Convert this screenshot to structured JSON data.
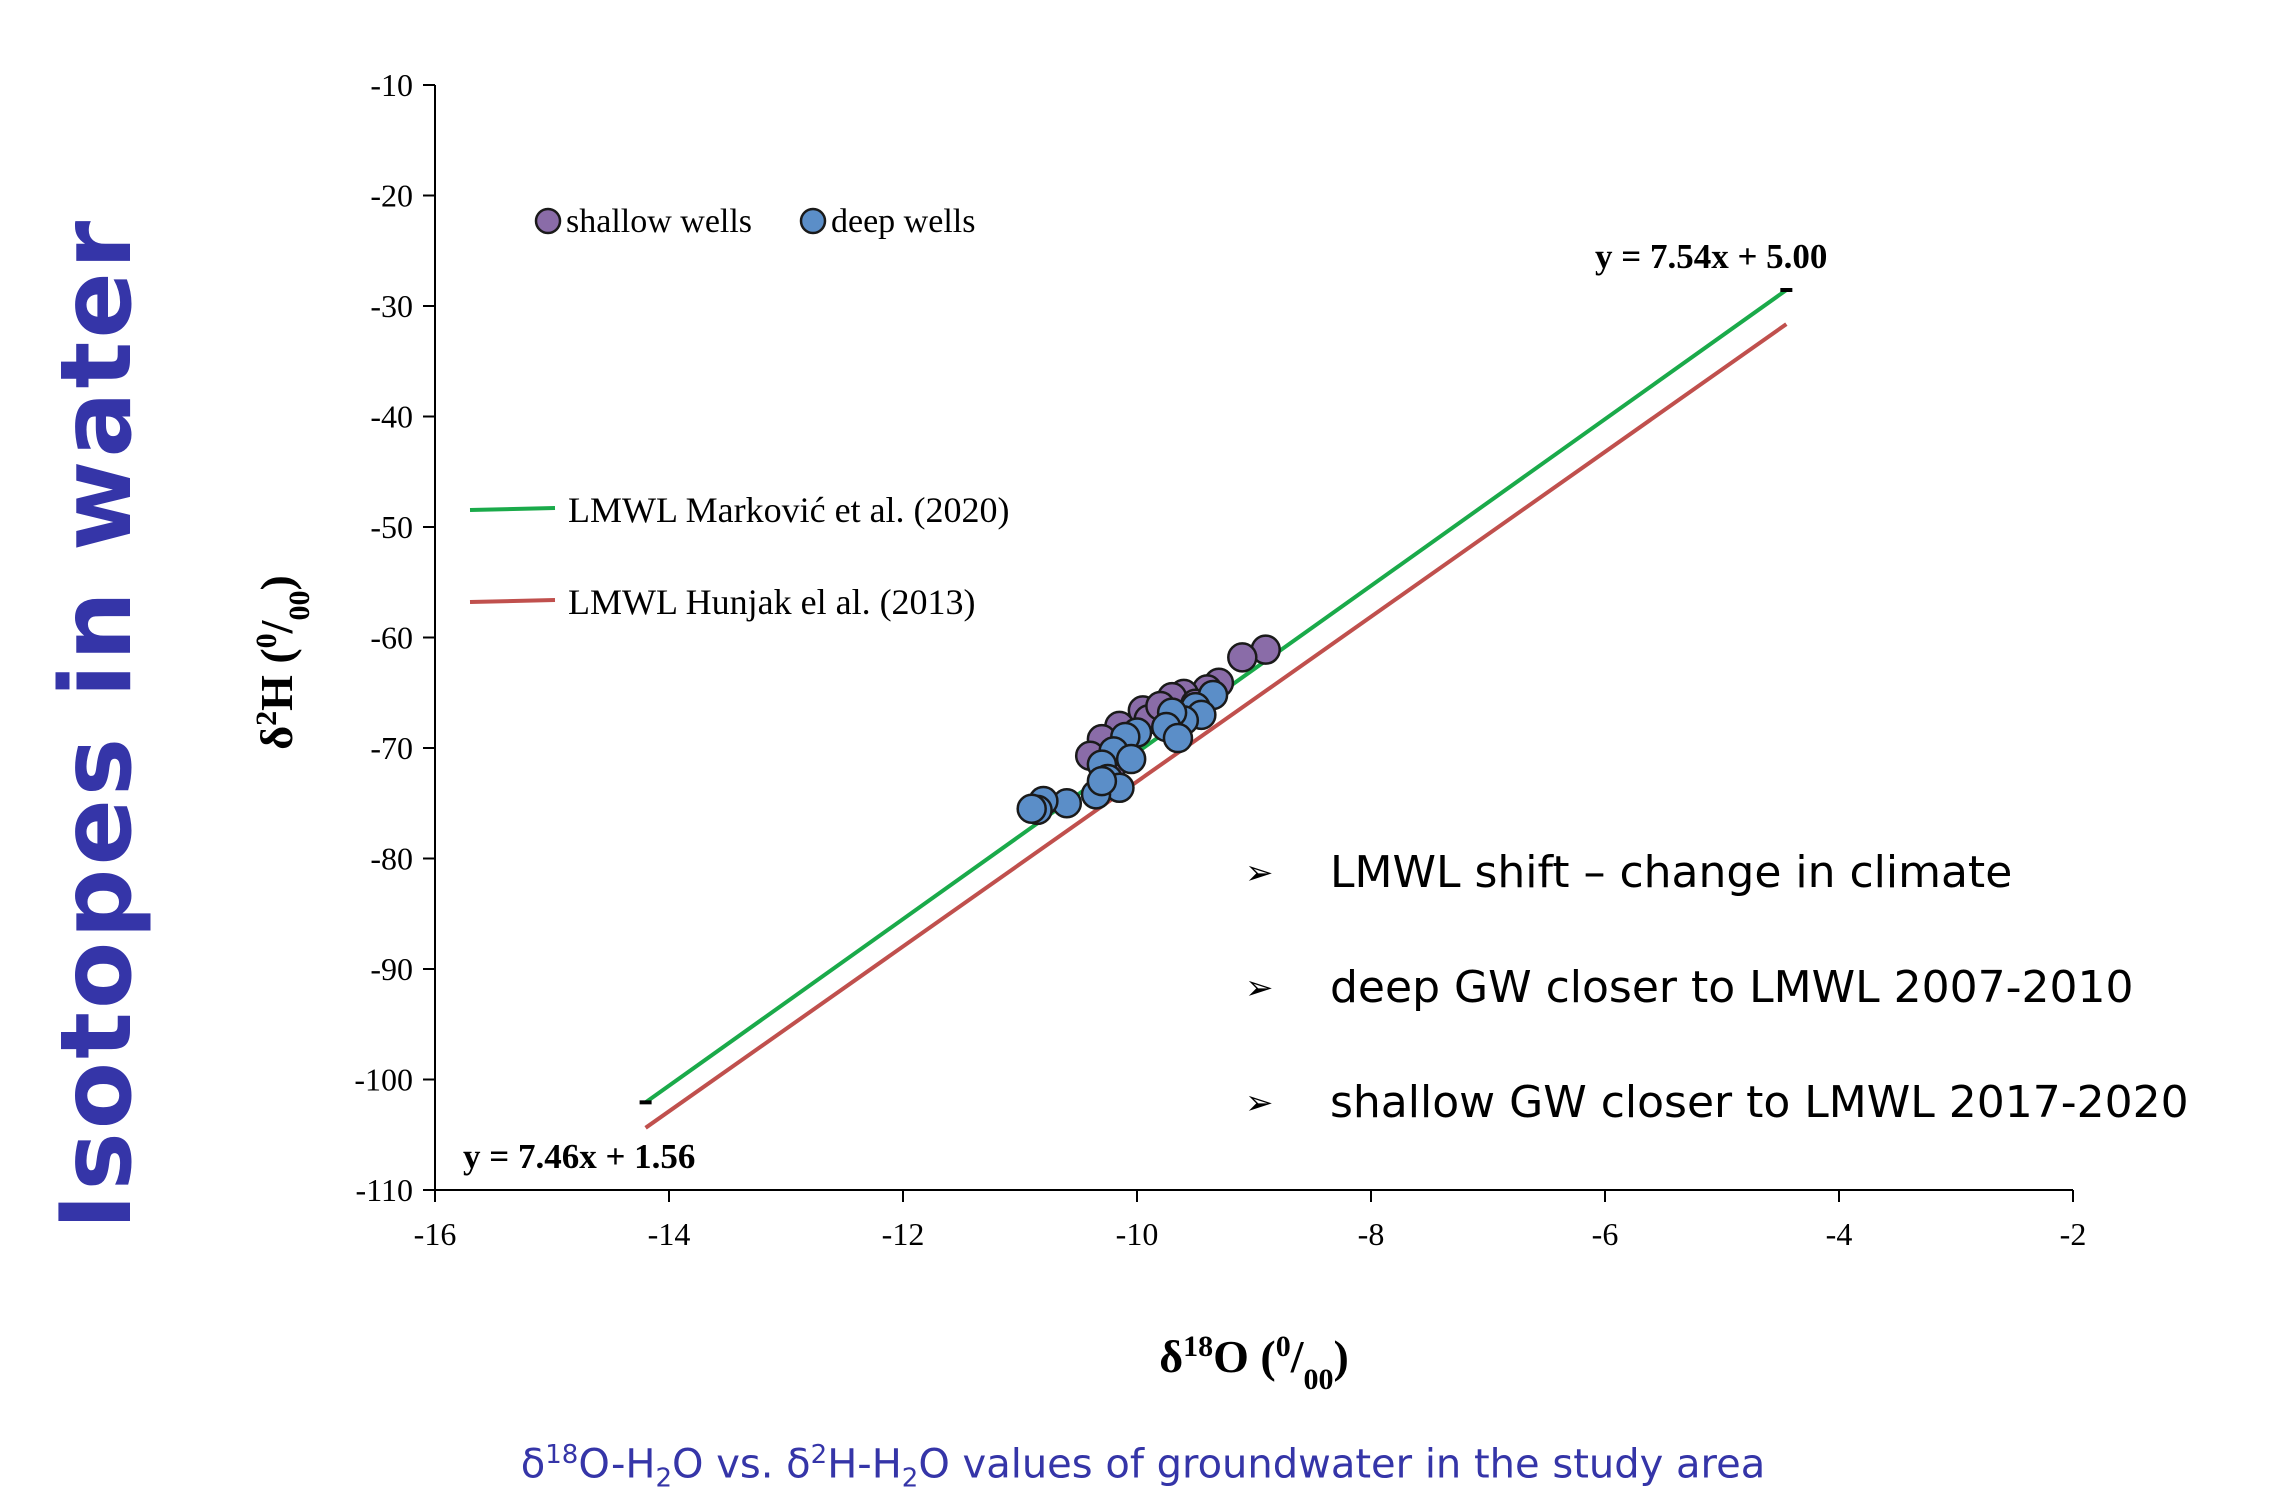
{
  "side_title": "Isotopes in water",
  "caption": {
    "p1": "δ",
    "s1": "18",
    "p2": "O-H",
    "s2": "2",
    "p3": "O vs. δ",
    "s3": "2",
    "p4": "H-H",
    "s4": "2",
    "p5": "O values of groundwater in the study area"
  },
  "bullets": [
    "LMWL shift – change in climate",
    "deep GW closer to LMWL 2007-2010",
    "shallow GW closer to LMWL 2017-2020"
  ],
  "chart_data": {
    "type": "scatter",
    "xlabel": {
      "p1": "δ",
      "sup": "18",
      "p2": "O (",
      "u1": "0",
      "slash": "/",
      "u2": "00",
      "p3": ")"
    },
    "ylabel": {
      "p1": "δ",
      "sup": "2",
      "p2": "H (",
      "u1": "0",
      "slash": "/",
      "u2": "00",
      "p3": ")"
    },
    "xlim": [
      -16,
      -2
    ],
    "ylim": [
      -110,
      -10
    ],
    "xticks": [
      -16,
      -14,
      -12,
      -10,
      -8,
      -6,
      -4,
      -2
    ],
    "yticks": [
      -10,
      -20,
      -30,
      -40,
      -50,
      -60,
      -70,
      -80,
      -90,
      -100,
      -110
    ],
    "legend_points": [
      {
        "label": "shallow wells",
        "color": "#8a6ca8"
      },
      {
        "label": "deep wells",
        "color": "#5b8ec8"
      }
    ],
    "legend_lines": [
      {
        "label": "LMWL Marković et al. (2020)",
        "color": "#1aaa4a"
      },
      {
        "label": "LMWL Hunjak el al. (2013)",
        "color": "#c0504d"
      }
    ],
    "lines": [
      {
        "name": "LMWL Marković et al. (2020)",
        "color": "#1aaa4a",
        "slope": 7.54,
        "intercept": 5.0,
        "x_range": [
          -14.2,
          -4.45
        ]
      },
      {
        "name": "LMWL Hunjak el al. (2013)",
        "color": "#c0504d",
        "slope": 7.46,
        "intercept": 1.56,
        "x_range": [
          -14.2,
          -4.45
        ]
      }
    ],
    "equations": [
      "y = 7.54x + 5.00",
      "y = 7.46x + 1.56"
    ],
    "series": [
      {
        "name": "shallow wells",
        "color": "#8a6ca8",
        "points": [
          [
            -8.9,
            -61.1
          ],
          [
            -9.1,
            -61.8
          ],
          [
            -9.3,
            -64.1
          ],
          [
            -9.4,
            -64.7
          ],
          [
            -9.6,
            -65.1
          ],
          [
            -9.7,
            -65.4
          ],
          [
            -9.5,
            -66.0
          ],
          [
            -9.95,
            -66.6
          ],
          [
            -9.9,
            -67.4
          ],
          [
            -10.15,
            -68.0
          ],
          [
            -10.3,
            -69.2
          ],
          [
            -10.1,
            -69.6
          ],
          [
            -10.4,
            -70.7
          ],
          [
            -10.2,
            -71.4
          ],
          [
            -9.6,
            -67.0
          ],
          [
            -9.8,
            -66.2
          ]
        ]
      },
      {
        "name": "deep wells",
        "color": "#5b8ec8",
        "points": [
          [
            -9.35,
            -65.2
          ],
          [
            -9.5,
            -66.3
          ],
          [
            -9.45,
            -67.0
          ],
          [
            -9.6,
            -67.5
          ],
          [
            -9.7,
            -66.8
          ],
          [
            -9.75,
            -68.1
          ],
          [
            -9.65,
            -69.1
          ],
          [
            -10.0,
            -68.6
          ],
          [
            -10.1,
            -69.0
          ],
          [
            -10.2,
            -70.3
          ],
          [
            -10.05,
            -71.0
          ],
          [
            -10.3,
            -71.5
          ],
          [
            -10.25,
            -72.8
          ],
          [
            -10.15,
            -73.6
          ],
          [
            -10.35,
            -74.2
          ],
          [
            -10.3,
            -73.0
          ],
          [
            -10.6,
            -75.0
          ],
          [
            -10.8,
            -74.8
          ],
          [
            -10.85,
            -75.6
          ],
          [
            -10.9,
            -75.5
          ]
        ]
      }
    ]
  }
}
